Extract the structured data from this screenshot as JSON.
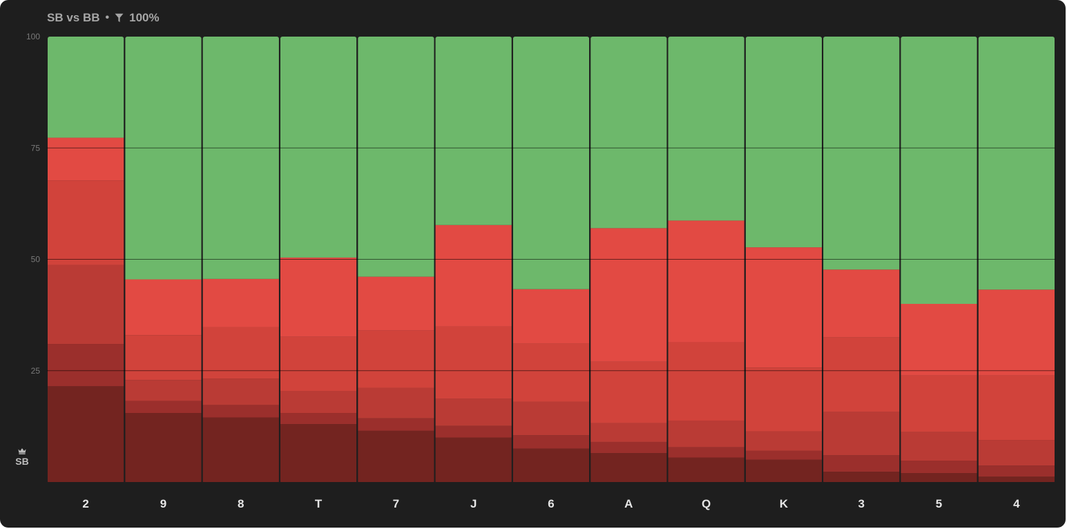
{
  "header": {
    "matchup": "SB vs BB",
    "separator": "•",
    "filter_icon": "filter-icon",
    "filter_value": "100%"
  },
  "player": {
    "icon": "crown-icon",
    "label": "SB"
  },
  "chart_data": {
    "type": "bar",
    "stacked": true,
    "normalized": true,
    "categories": [
      "2",
      "9",
      "8",
      "T",
      "7",
      "J",
      "6",
      "A",
      "Q",
      "K",
      "3",
      "5",
      "4"
    ],
    "yticks": [
      "100",
      "75",
      "50",
      "25"
    ],
    "ylim": [
      0,
      100
    ],
    "grid": true,
    "series": [
      {
        "color": "#732420",
        "values": [
          21.5,
          15.5,
          14.5,
          13,
          11.5,
          10,
          7.5,
          6.5,
          5.5,
          5,
          2.3,
          2,
          1.2
        ]
      },
      {
        "color": "#9b2f2c",
        "values": [
          9.5,
          2.7,
          2.8,
          2.5,
          2.8,
          2.6,
          3,
          2.5,
          2.3,
          2,
          3.7,
          2.8,
          2.5
        ]
      },
      {
        "color": "#ba3b35",
        "values": [
          17.7,
          4.7,
          5.9,
          4.9,
          6.8,
          6.1,
          7.5,
          4.2,
          6,
          4.4,
          9.7,
          6.4,
          5.7
        ]
      },
      {
        "color": "#d1433b",
        "values": [
          19,
          10.1,
          11.6,
          12.2,
          12.9,
          16.2,
          13.1,
          13.8,
          17.6,
          14.3,
          16.8,
          12.7,
          14.5
        ]
      },
      {
        "color": "#e24a43",
        "values": [
          9.6,
          12.5,
          10.8,
          17.8,
          12.1,
          22.8,
          12.2,
          30,
          27.3,
          27,
          15.2,
          16.1,
          19.3
        ]
      },
      {
        "color": "#6db86b",
        "values": [
          22.7,
          54.5,
          54.4,
          49.6,
          53.9,
          42.3,
          56.7,
          43,
          41.3,
          47.3,
          52.3,
          60,
          56.8
        ]
      }
    ]
  }
}
